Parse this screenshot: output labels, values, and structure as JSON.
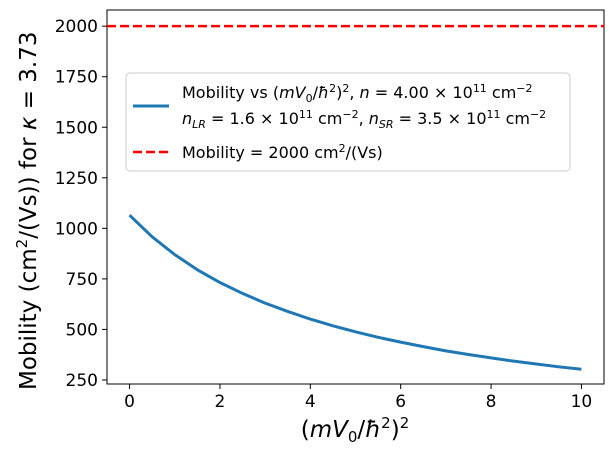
{
  "chart_data": {
    "type": "line",
    "title": "",
    "xlabel_parts": {
      "open": "(",
      "mv": "mV",
      "sub0": "0",
      "slash": "/",
      "hbar": "ħ",
      "sup2a": "2",
      "close": ")",
      "sup2b": "2"
    },
    "ylabel_parts": {
      "pre": "Mobility (cm",
      "sup": "2",
      "post": "/(Vs)) for  ",
      "kappa": "κ",
      "eq": " = 3.73"
    },
    "xlim": [
      -0.5,
      10.5
    ],
    "ylim": [
      230,
      2080
    ],
    "xticks": [
      0,
      2,
      4,
      6,
      8,
      10
    ],
    "xtick_labels": [
      "0",
      "2",
      "4",
      "6",
      "8",
      "10"
    ],
    "yticks": [
      250,
      500,
      750,
      1000,
      1250,
      1500,
      1750,
      2000
    ],
    "ytick_labels": [
      "250",
      "500",
      "750",
      "1000",
      "1250",
      "1500",
      "1750",
      "2000"
    ],
    "grid": false,
    "legend_position": "upper-center",
    "series": [
      {
        "name": "Mobility vs (mV0/ħ²)², n = 4.00×10¹¹ cm⁻², nLR = 1.6×10¹¹ cm⁻², nSR = 3.5×10¹¹ cm⁻²",
        "color": "#1f77b4",
        "style": "solid",
        "x": [
          0,
          0.5,
          1,
          1.5,
          2,
          2.5,
          3,
          3.5,
          4,
          4.5,
          5,
          5.5,
          6,
          6.5,
          7,
          7.5,
          8,
          8.5,
          9,
          9.5,
          10
        ],
        "y": [
          1065,
          958,
          870,
          795,
          732,
          678,
          630,
          589,
          551,
          518,
          488,
          461,
          437,
          415,
          394,
          376,
          359,
          343,
          329,
          315,
          303
        ]
      },
      {
        "name": "Mobility = 2000 cm²/(Vs)",
        "color": "#ff0000",
        "style": "dashed",
        "x": [
          -0.5,
          10.5
        ],
        "y": [
          2000,
          2000
        ]
      }
    ],
    "legend": {
      "entry1_line1": {
        "pre": "Mobility vs ",
        "open": "(",
        "mv": "mV",
        "sub0": "0",
        "slash": "/",
        "hbar": "ħ",
        "sup2a": "2",
        "close": ")",
        "sup2b": "2",
        "comma": ", ",
        "n": "n",
        "eq": " = 4.00 × 10",
        "exp": "11",
        "unit": " cm",
        "unit_exp": "−2"
      },
      "entry1_line2": {
        "n1": "n",
        "sub1": "LR",
        "val1": " = 1.6 × 10",
        "exp1": "11",
        "unit1": " cm",
        "uexp1": "−2",
        "sep": ",  ",
        "n2": "n",
        "sub2": "SR",
        "val2": " = 3.5 × 10",
        "exp2": "11",
        "unit2": " cm",
        "uexp2": "−2"
      },
      "entry2": {
        "pre": "Mobility = 2000 cm",
        "sup": "2",
        "post": "/(Vs)"
      }
    }
  }
}
